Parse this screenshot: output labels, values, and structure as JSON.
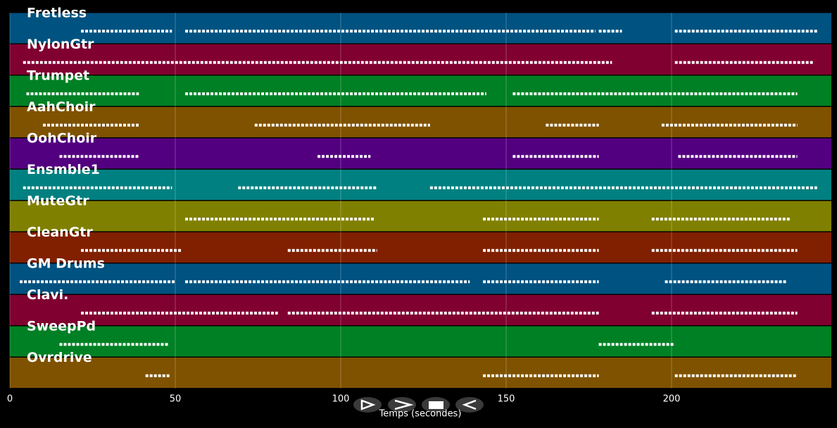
{
  "tracks": [
    {
      "name": "Fretless",
      "color": "#005280",
      "segments": [
        [
          21.5,
          49
        ],
        [
          53,
          177
        ],
        [
          178,
          185
        ],
        [
          201,
          244
        ]
      ]
    },
    {
      "name": "NylonGtr",
      "color": "#800030",
      "segments": [
        [
          4,
          182
        ],
        [
          201,
          243
        ]
      ]
    },
    {
      "name": "Trumpet",
      "color": "#008024",
      "segments": [
        [
          5,
          39
        ],
        [
          53,
          144
        ],
        [
          152,
          238
        ]
      ]
    },
    {
      "name": "AahChoir",
      "color": "#7f5200",
      "segments": [
        [
          10,
          39
        ],
        [
          74,
          127
        ],
        [
          162,
          178
        ],
        [
          197,
          238
        ]
      ]
    },
    {
      "name": "OohChoir",
      "color": "#530080",
      "segments": [
        [
          15,
          39
        ],
        [
          93,
          109
        ],
        [
          152,
          178
        ],
        [
          202,
          238
        ]
      ]
    },
    {
      "name": "Ensmble1",
      "color": "#008080",
      "segments": [
        [
          4,
          49
        ],
        [
          69,
          111
        ],
        [
          127,
          244
        ]
      ]
    },
    {
      "name": "MuteGtr",
      "color": "#808000",
      "segments": [
        [
          53,
          110
        ],
        [
          143,
          178
        ],
        [
          194,
          236
        ]
      ]
    },
    {
      "name": "CleanGtr",
      "color": "#802000",
      "segments": [
        [
          21.5,
          52
        ],
        [
          84,
          111
        ],
        [
          143,
          178
        ],
        [
          194,
          238
        ]
      ]
    },
    {
      "name": "GM Drums",
      "color": "#005280",
      "segments": [
        [
          3,
          50
        ],
        [
          53,
          139
        ],
        [
          143,
          178
        ],
        [
          198,
          235
        ]
      ]
    },
    {
      "name": "Clavi.",
      "color": "#800030",
      "segments": [
        [
          21.5,
          81
        ],
        [
          84,
          178
        ],
        [
          194,
          238
        ]
      ]
    },
    {
      "name": "SweepPd",
      "color": "#008024",
      "segments": [
        [
          15,
          48
        ],
        [
          178,
          201
        ]
      ]
    },
    {
      "name": "Ovrdrive",
      "color": "#7f5200",
      "segments": [
        [
          41,
          48.5
        ],
        [
          143,
          178
        ],
        [
          201,
          238
        ]
      ]
    }
  ],
  "axis": {
    "label": "Temps (secondes)",
    "xlim": [
      0,
      248.3
    ],
    "xticks": [
      0,
      50,
      100,
      150,
      200
    ]
  }
}
